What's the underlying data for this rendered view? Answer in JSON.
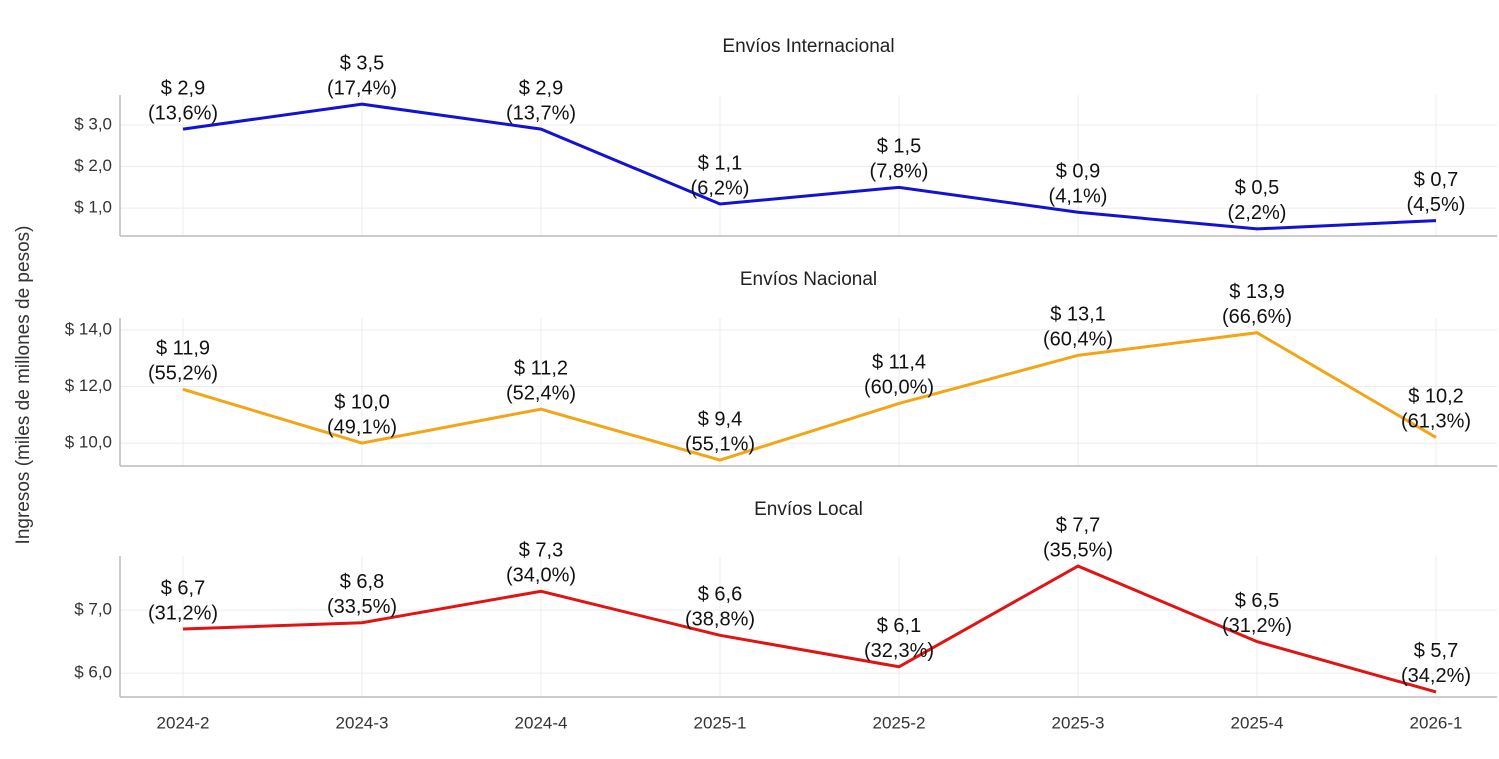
{
  "ylabel": "Ingresos (miles de millones de pesos)",
  "categories": [
    "2024-2",
    "2024-3",
    "2024-4",
    "2025-1",
    "2025-2",
    "2025-3",
    "2025-4",
    "2026-1"
  ],
  "chart_data": [
    {
      "type": "line",
      "title": "Envíos Internacional",
      "color": "#1212d4",
      "values": [
        2.9,
        3.5,
        2.9,
        1.1,
        1.5,
        0.9,
        0.5,
        0.7
      ],
      "value_labels": [
        "$ 2,9",
        "$ 3,5",
        "$ 2,9",
        "$ 1,1",
        "$ 1,5",
        "$ 0,9",
        "$ 0,5",
        "$ 0,7"
      ],
      "shares": [
        13.6,
        17.4,
        13.7,
        6.2,
        7.8,
        4.1,
        2.2,
        4.5
      ],
      "share_labels": [
        "(13,6%)",
        "(17,4%)",
        "(13,7%)",
        "(6,2%)",
        "(7,8%)",
        "(4,1%)",
        "(2,2%)",
        "(4,5%)"
      ],
      "ylim": [
        0.33,
        3.72
      ],
      "yticks": [
        {
          "value": 1,
          "label": "$ 1,0"
        },
        {
          "value": 2,
          "label": "$ 2,0"
        },
        {
          "value": 3,
          "label": "$ 3,0"
        }
      ],
      "grid": true
    },
    {
      "type": "line",
      "title": "Envíos Nacional",
      "color": "#f2a516",
      "values": [
        11.9,
        10.0,
        11.2,
        9.4,
        11.4,
        13.1,
        13.9,
        10.2
      ],
      "value_labels": [
        "$ 11,9",
        "$ 10,0",
        "$ 11,2",
        "$ 9,4",
        "$ 11,4",
        "$ 13,1",
        "$ 13,9",
        "$ 10,2"
      ],
      "shares": [
        55.2,
        49.1,
        52.4,
        55.1,
        60.0,
        60.4,
        66.6,
        61.3
      ],
      "share_labels": [
        "(55,2%)",
        "(49,1%)",
        "(52,4%)",
        "(55,1%)",
        "(60,0%)",
        "(60,4%)",
        "(66,6%)",
        "(61,3%)"
      ],
      "ylim": [
        9.19,
        14.42
      ],
      "yticks": [
        {
          "value": 10,
          "label": "$ 10,0"
        },
        {
          "value": 12,
          "label": "$ 12,0"
        },
        {
          "value": 14,
          "label": "$ 14,0"
        }
      ],
      "grid": true
    },
    {
      "type": "line",
      "title": "Envíos Local",
      "color": "#e01414",
      "values": [
        6.7,
        6.8,
        7.3,
        6.6,
        6.1,
        7.7,
        6.5,
        5.7
      ],
      "value_labels": [
        "$ 6,7",
        "$ 6,8",
        "$ 7,3",
        "$ 6,6",
        "$ 6,1",
        "$ 7,7",
        "$ 6,5",
        "$ 5,7"
      ],
      "shares": [
        31.2,
        33.5,
        34.0,
        38.8,
        32.3,
        35.5,
        31.2,
        34.2
      ],
      "share_labels": [
        "(31,2%)",
        "(33,5%)",
        "(34,0%)",
        "(38,8%)",
        "(32,3%)",
        "(35,5%)",
        "(31,2%)",
        "(34,2%)"
      ],
      "ylim": [
        5.62,
        7.86
      ],
      "yticks": [
        {
          "value": 6,
          "label": "$ 6,0"
        },
        {
          "value": 7,
          "label": "$ 7,0"
        }
      ],
      "grid": true
    }
  ]
}
